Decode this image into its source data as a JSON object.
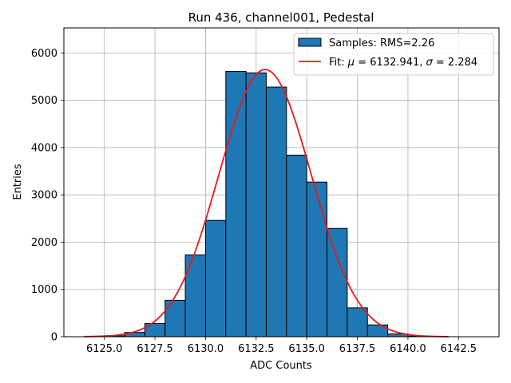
{
  "chart_data": {
    "type": "bar",
    "title": "Run 436, channel001, Pedestal",
    "xlabel": "ADC Counts",
    "ylabel": "Entries",
    "xlim": [
      6123.0,
      6144.5
    ],
    "ylim": [
      0,
      6530
    ],
    "grid": true,
    "legend_placement": "top-right",
    "colors": {
      "bar_fill": "#1f77b4",
      "bar_edge": "#000000",
      "fit_line": "#e31a1c",
      "grid": "#b0b0b0"
    },
    "x_ticks": [
      6125.0,
      6127.5,
      6130.0,
      6132.5,
      6135.0,
      6137.5,
      6140.0,
      6142.5
    ],
    "x_tick_labels": [
      "6125.0",
      "6127.5",
      "6130.0",
      "6132.5",
      "6135.0",
      "6137.5",
      "6140.0",
      "6142.5"
    ],
    "y_ticks": [
      0,
      1000,
      2000,
      3000,
      4000,
      5000,
      6000
    ],
    "y_tick_labels": [
      "0",
      "1000",
      "2000",
      "3000",
      "4000",
      "5000",
      "6000"
    ],
    "bin_edges": [
      6124,
      6125,
      6126,
      6127,
      6128,
      6129,
      6130,
      6131,
      6132,
      6133,
      6134,
      6135,
      6136,
      6137,
      6138,
      6139,
      6140,
      6141,
      6142,
      6143,
      6144
    ],
    "series": [
      {
        "name": "Samples: RMS=2.26",
        "kind": "histogram",
        "values": [
          0,
          20,
          90,
          280,
          770,
          1730,
          2460,
          5610,
          5580,
          5280,
          3840,
          3270,
          2290,
          610,
          250,
          60,
          15,
          0,
          0,
          0
        ]
      },
      {
        "name": "Fit: μ = 6132.941, σ = 2.284",
        "kind": "gaussian_fit",
        "mu": 6132.941,
        "sigma": 2.284,
        "amplitude": 5650,
        "x_range": [
          6124,
          6142
        ]
      }
    ],
    "legend": {
      "samples_label": "Samples: RMS=2.26",
      "fit_label_prefix": "Fit: ",
      "fit_mu_symbol": "μ",
      "fit_mu_value": " = 6132.941, ",
      "fit_sigma_symbol": "σ",
      "fit_sigma_value": " = 2.284"
    }
  }
}
